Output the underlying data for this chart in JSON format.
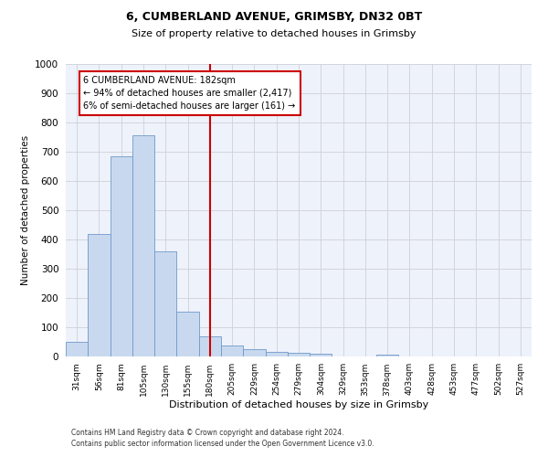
{
  "title1": "6, CUMBERLAND AVENUE, GRIMSBY, DN32 0BT",
  "title2": "Size of property relative to detached houses in Grimsby",
  "xlabel": "Distribution of detached houses by size in Grimsby",
  "ylabel": "Number of detached properties",
  "bin_labels": [
    "31sqm",
    "56sqm",
    "81sqm",
    "105sqm",
    "130sqm",
    "155sqm",
    "180sqm",
    "205sqm",
    "229sqm",
    "254sqm",
    "279sqm",
    "304sqm",
    "329sqm",
    "353sqm",
    "378sqm",
    "403sqm",
    "428sqm",
    "453sqm",
    "477sqm",
    "502sqm",
    "527sqm"
  ],
  "bar_heights": [
    50,
    420,
    685,
    757,
    360,
    152,
    70,
    38,
    25,
    15,
    12,
    8,
    0,
    0,
    7,
    0,
    0,
    0,
    0,
    0,
    0
  ],
  "bar_color": "#c8d9ef",
  "bar_edge_color": "#7098c8",
  "vline_x": 6,
  "vline_color": "#cc0000",
  "annotation_title": "6 CUMBERLAND AVENUE: 182sqm",
  "annotation_line1": "← 94% of detached houses are smaller (2,417)",
  "annotation_line2": "6% of semi-detached houses are larger (161) →",
  "annotation_box_color": "#cc0000",
  "ylim": [
    0,
    1000
  ],
  "yticks": [
    0,
    100,
    200,
    300,
    400,
    500,
    600,
    700,
    800,
    900,
    1000
  ],
  "footnote1": "Contains HM Land Registry data © Crown copyright and database right 2024.",
  "footnote2": "Contains public sector information licensed under the Open Government Licence v3.0.",
  "bg_color": "#eef2fb",
  "grid_color": "#d0d0d8"
}
